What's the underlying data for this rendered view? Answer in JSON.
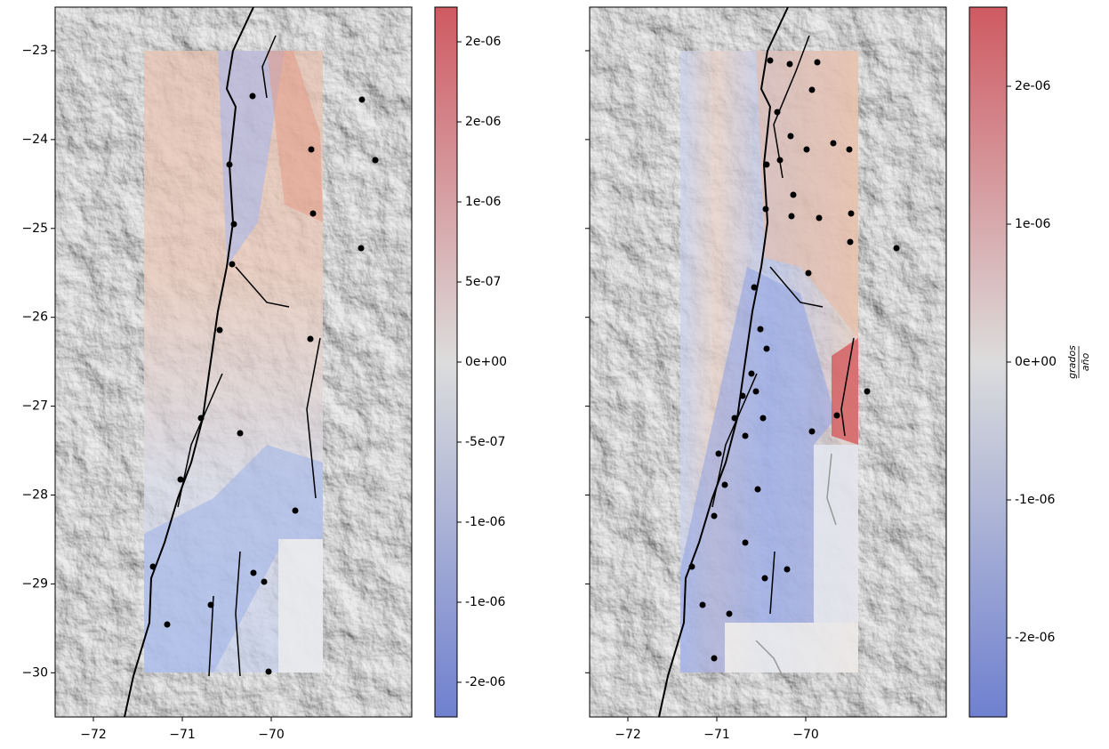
{
  "panels": [
    {
      "xticks": [
        "−72",
        "−71",
        "−70"
      ],
      "yticks": [
        "−23",
        "−24",
        "−25",
        "−26",
        "−27",
        "−28",
        "−29",
        "−30"
      ],
      "colorbar": {
        "ticks": [
          "2e-06",
          "2e-06",
          "1e-06",
          "5e-07",
          "0e+00",
          "-5e-07",
          "-1e-06",
          "-1e-06",
          "-2e-06"
        ]
      }
    },
    {
      "xticks": [
        "−72",
        "−71",
        "−70"
      ],
      "colorbar": {
        "ticks": [
          "2e-06",
          "1e-06",
          "0e+00",
          "-1e-06",
          "-2e-06"
        ],
        "label": {
          "numerator": "grados",
          "denominator": "año"
        }
      }
    }
  ]
}
